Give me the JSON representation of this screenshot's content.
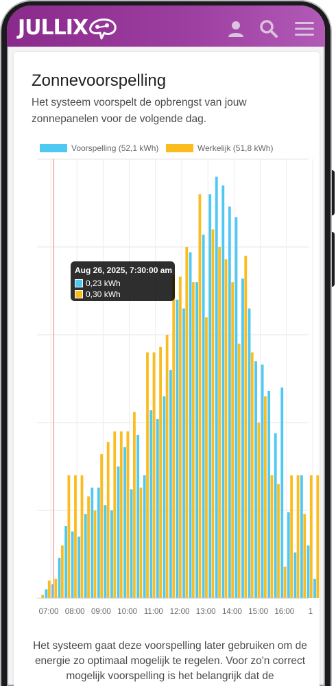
{
  "header": {
    "logo_text": "JULLIX",
    "icons": [
      "user-icon",
      "search-icon",
      "menu-icon"
    ]
  },
  "page": {
    "title": "Zonnevoorspelling",
    "subtitle": "Het systeem voorspelt de opbrengst van jouw zonnepanelen voor de volgende dag.",
    "bottom_text": "Het systeem gaat deze voorspelling later gebruiken om de energie zo optimaal mogelijk te regelen. Voor zo'n correct mogelijk voorspelling is het belangrijk dat de"
  },
  "colors": {
    "header_start": "#8a2a8c",
    "header_end": "#b15ab6",
    "forecast": "#4fc8f2",
    "actual": "#fbbc1f",
    "marker": "#f2a3a3"
  },
  "legend": {
    "forecast_label": "Voorspelling (52,1 kWh)",
    "actual_label": "Werkelijk (51,8 kWh)"
  },
  "tooltip": {
    "title": "Aug 26, 2025, 7:30:00 am",
    "forecast_value": "0,23 kWh",
    "actual_value": "0,30 kWh"
  },
  "chart_data": {
    "type": "bar",
    "x_tick_labels": [
      "07:00",
      "08:00",
      "09:00",
      "10:00",
      "11:00",
      "12:00",
      "13:00",
      "14:00",
      "15:00",
      "16:00",
      "1"
    ],
    "x_start": "06:45",
    "interval_minutes": 15,
    "ylim": [
      0,
      2.5
    ],
    "grid": true,
    "legend_position": "top",
    "series": [
      {
        "name": "Voorspelling (52,1 kWh)",
        "color": "#4fc8f2",
        "values": [
          0,
          0.05,
          0.08,
          0.23,
          0.41,
          0.38,
          0.35,
          0.48,
          0.63,
          0.63,
          0.53,
          0.5,
          0.75,
          0.86,
          0.62,
          0.93,
          0.7,
          1.07,
          1.02,
          1.15,
          1.3,
          1.7,
          1.65,
          1.97,
          1.8,
          2.07,
          2.3,
          2.4,
          2.35,
          2.23,
          2.17,
          1.82,
          1.65,
          1.35,
          1.33,
          1.18,
          0.94,
          1.2,
          0.49,
          0.26,
          0.7,
          0.3,
          0.11
        ]
      },
      {
        "name": "Werkelijk (51,8 kWh)",
        "color": "#fbbc1f",
        "values": [
          0.02,
          0.1,
          0.11,
          0.3,
          0.7,
          0.7,
          0.7,
          0.58,
          0.5,
          0.82,
          0.89,
          0.95,
          0.95,
          0.95,
          1.06,
          0.63,
          1.4,
          1.4,
          1.43,
          1.5,
          1.84,
          1.83,
          2.0,
          1.8,
          2.3,
          1.6,
          2.1,
          2.0,
          1.93,
          1.8,
          1.45,
          1.95,
          1.4,
          1.0,
          1.15,
          0.7,
          0.65,
          0.18,
          0.7,
          0.7,
          0.48,
          0.7,
          0.7
        ]
      }
    ]
  }
}
